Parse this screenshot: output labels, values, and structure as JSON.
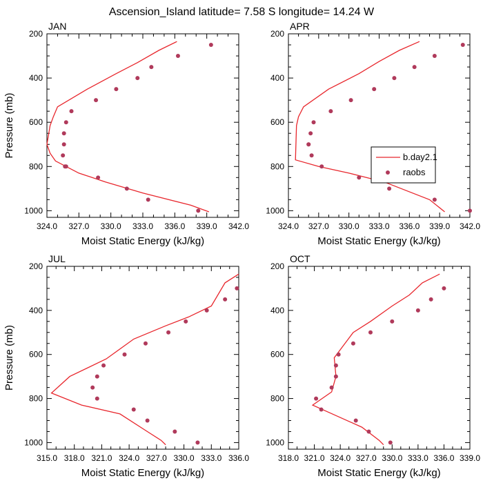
{
  "figure_title": "Ascension_Island  latitude= 7.58 S longitude= 14.24 W",
  "colors": {
    "model_line": "#e8262c",
    "obs_marker": "#b03a5b",
    "axis": "#000000"
  },
  "legend": {
    "panel": 1,
    "items": [
      {
        "label": "b.day2.1",
        "kind": "line"
      },
      {
        "label": "raobs",
        "kind": "marker"
      }
    ]
  },
  "chart_data": [
    {
      "type": "line",
      "title": "JAN",
      "xlabel": "Moist Static Energy (kJ/kg)",
      "ylabel": "Pressure (mb)",
      "xlim": [
        324.0,
        342.0
      ],
      "xticks": [
        324.0,
        327.0,
        330.0,
        333.0,
        336.0,
        339.0,
        342.0
      ],
      "ylim": [
        200,
        1025
      ],
      "yticks": [
        200,
        400,
        600,
        800,
        1000
      ],
      "y_inverted": true,
      "series": [
        {
          "name": "b.day2.1",
          "kind": "line",
          "x": [
            336.2,
            334.5,
            332.5,
            330.5,
            327.8,
            325.0,
            324.6,
            324.3,
            324.0,
            324.3,
            324.8,
            325.8,
            327.0,
            329.5,
            333.0,
            337.5,
            339.2
          ],
          "y": [
            235,
            275,
            330,
            380,
            450,
            530,
            575,
            615,
            700,
            740,
            775,
            800,
            830,
            870,
            920,
            975,
            1005
          ]
        },
        {
          "name": "raobs",
          "kind": "scatter",
          "x": [
            339.4,
            336.3,
            333.8,
            332.5,
            330.5,
            328.6,
            326.3,
            325.8,
            325.6,
            325.6,
            325.5,
            325.7,
            325.8,
            328.8,
            331.5,
            333.5,
            338.2
          ],
          "y": [
            250,
            300,
            350,
            400,
            450,
            500,
            550,
            600,
            650,
            700,
            750,
            800,
            800,
            850,
            900,
            950,
            1000
          ]
        }
      ]
    },
    {
      "type": "line",
      "title": "APR",
      "xlabel": "Moist Static Energy (kJ/kg)",
      "ylabel": "",
      "xlim": [
        324.0,
        342.0
      ],
      "xticks": [
        324.0,
        327.0,
        330.0,
        333.0,
        336.0,
        339.0,
        342.0
      ],
      "ylim": [
        200,
        1025
      ],
      "yticks": [
        200,
        400,
        600,
        800,
        1000
      ],
      "y_inverted": true,
      "series": [
        {
          "name": "b.day2.1",
          "kind": "line",
          "x": [
            337.0,
            335.0,
            333.0,
            331.0,
            328.0,
            325.5,
            325.0,
            324.8,
            324.7,
            327.0,
            330.0,
            333.5,
            338.0,
            339.5
          ],
          "y": [
            235,
            275,
            325,
            380,
            450,
            530,
            575,
            615,
            770,
            800,
            830,
            870,
            950,
            1005
          ]
        },
        {
          "name": "raobs",
          "kind": "scatter",
          "x": [
            341.3,
            338.5,
            336.5,
            334.5,
            332.5,
            330.2,
            328.2,
            326.5,
            326.2,
            326.0,
            326.0,
            326.3,
            327.3,
            331.0,
            334.0,
            338.5,
            342.0
          ],
          "y": [
            250,
            300,
            350,
            400,
            450,
            500,
            550,
            600,
            650,
            700,
            700,
            750,
            800,
            850,
            900,
            950,
            1000
          ]
        }
      ]
    },
    {
      "type": "line",
      "title": "JUL",
      "xlabel": "Moist Static Energy (kJ/kg)",
      "ylabel": "Pressure (mb)",
      "xlim": [
        315.0,
        336.0
      ],
      "xticks": [
        315.0,
        318.0,
        321.0,
        324.0,
        327.0,
        330.0,
        333.0,
        336.0
      ],
      "ylim": [
        200,
        1025
      ],
      "yticks": [
        200,
        400,
        600,
        800,
        1000
      ],
      "y_inverted": true,
      "series": [
        {
          "name": "b.day2.1",
          "kind": "line",
          "x": [
            336.0,
            334.5,
            333.0,
            330.5,
            328.0,
            324.5,
            321.5,
            317.5,
            315.5,
            318.8,
            323.0,
            326.0,
            327.5,
            328.0
          ],
          "y": [
            235,
            275,
            380,
            430,
            470,
            530,
            620,
            700,
            775,
            830,
            870,
            950,
            990,
            1010
          ]
        },
        {
          "name": "raobs",
          "kind": "scatter",
          "x": [
            335.8,
            334.5,
            332.5,
            330.2,
            328.3,
            325.8,
            323.5,
            321.2,
            320.5,
            320.0,
            320.5,
            324.5,
            326.0,
            329.0,
            331.5
          ],
          "y": [
            300,
            350,
            400,
            450,
            500,
            550,
            600,
            650,
            700,
            750,
            800,
            850,
            900,
            950,
            1000
          ]
        }
      ]
    },
    {
      "type": "line",
      "title": "OCT",
      "xlabel": "Moist Static Energy (kJ/kg)",
      "ylabel": "",
      "xlim": [
        318.0,
        339.0
      ],
      "xticks": [
        318.0,
        321.0,
        324.0,
        327.0,
        330.0,
        333.0,
        336.0,
        339.0
      ],
      "ylim": [
        200,
        1025
      ],
      "yticks": [
        200,
        400,
        600,
        800,
        1000
      ],
      "y_inverted": true,
      "series": [
        {
          "name": "b.day2.1",
          "kind": "line",
          "x": [
            335.5,
            333.5,
            332.0,
            330.0,
            327.5,
            325.5,
            323.3,
            323.5,
            323.0,
            320.8,
            322.5,
            326.5,
            328.5,
            329.0
          ],
          "y": [
            235,
            275,
            330,
            380,
            450,
            500,
            615,
            700,
            770,
            830,
            860,
            930,
            990,
            1010
          ]
        },
        {
          "name": "raobs",
          "kind": "scatter",
          "x": [
            336.0,
            334.5,
            333.0,
            330.0,
            327.5,
            325.5,
            323.8,
            323.5,
            323.5,
            323.0,
            321.2,
            321.8,
            325.8,
            327.3,
            329.8
          ],
          "y": [
            300,
            350,
            400,
            450,
            500,
            550,
            600,
            650,
            700,
            750,
            800,
            850,
            900,
            950,
            1000
          ]
        }
      ]
    }
  ]
}
